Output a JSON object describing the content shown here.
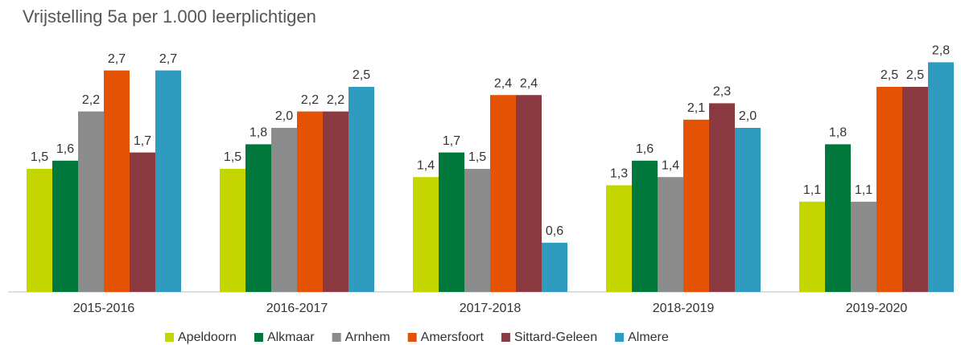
{
  "chart_data": {
    "type": "bar",
    "title": "Vrijstelling 5a per 1.000 leerplichtigen",
    "categories": [
      "2015-2016",
      "2016-2017",
      "2017-2018",
      "2018-2019",
      "2019-2020"
    ],
    "series": [
      {
        "name": "Apeldoorn",
        "color": "#c4d600",
        "values": [
          1.5,
          1.5,
          1.4,
          1.3,
          1.1
        ],
        "value_labels": [
          "1,5",
          "1,5",
          "1,4",
          "1,3",
          "1,1"
        ]
      },
      {
        "name": "Alkmaar",
        "color": "#00783c",
        "values": [
          1.6,
          1.8,
          1.7,
          1.6,
          1.8
        ],
        "value_labels": [
          "1,6",
          "1,8",
          "1,7",
          "1,6",
          "1,8"
        ]
      },
      {
        "name": "Arnhem",
        "color": "#8c8c8c",
        "values": [
          2.2,
          2.0,
          1.5,
          1.4,
          1.1
        ],
        "value_labels": [
          "2,2",
          "2,0",
          "1,5",
          "1,4",
          "1,1"
        ]
      },
      {
        "name": "Amersfoort",
        "color": "#e35205",
        "values": [
          2.7,
          2.2,
          2.4,
          2.1,
          2.5
        ],
        "value_labels": [
          "2,7",
          "2,2",
          "2,4",
          "2,1",
          "2,5"
        ]
      },
      {
        "name": "Sittard-Geleen",
        "color": "#8b3a42",
        "values": [
          1.7,
          2.2,
          2.4,
          2.3,
          2.5
        ],
        "value_labels": [
          "1,7",
          "2,2",
          "2,4",
          "2,3",
          "2,5"
        ]
      },
      {
        "name": "Almere",
        "color": "#2e9bbf",
        "values": [
          2.7,
          2.5,
          0.6,
          2.0,
          2.8
        ],
        "value_labels": [
          "2,7",
          "2,5",
          "0,6",
          "2,0",
          "2,8"
        ]
      }
    ]
  }
}
